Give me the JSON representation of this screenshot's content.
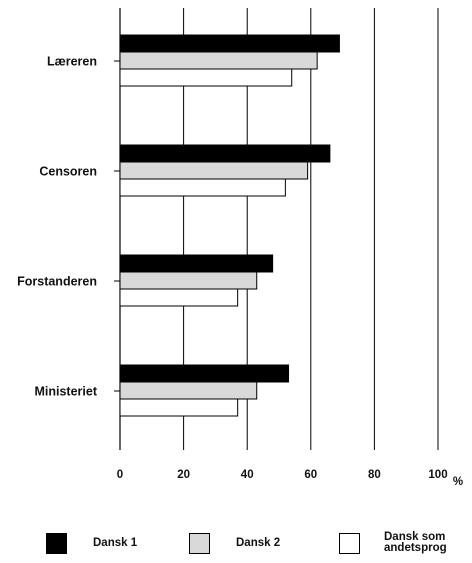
{
  "chart_data": {
    "type": "bar",
    "orientation": "horizontal",
    "categories": [
      "Læreren",
      "Censoren",
      "Forstanderen",
      "Ministeriet"
    ],
    "series": [
      {
        "name": "Dansk 1",
        "values": [
          69,
          66,
          48,
          53
        ],
        "color": "#000000"
      },
      {
        "name": "Dansk 2",
        "values": [
          62,
          59,
          43,
          43
        ],
        "color": "#d9d9d9"
      },
      {
        "name": "Dansk som andetsprog",
        "values": [
          54,
          52,
          37,
          37
        ],
        "color": "#ffffff"
      }
    ],
    "xlim": [
      0,
      100
    ],
    "xticks": [
      "0",
      "20",
      "40",
      "60",
      "80",
      "100"
    ],
    "xunit": "%",
    "grid": true,
    "legend_position": "bottom"
  },
  "legend": [
    {
      "label": "Dansk 1",
      "color": "#000000"
    },
    {
      "label": "Dansk 2",
      "color": "#d9d9d9"
    },
    {
      "label": "Dansk som\nandetsprog",
      "color": "#ffffff"
    }
  ]
}
